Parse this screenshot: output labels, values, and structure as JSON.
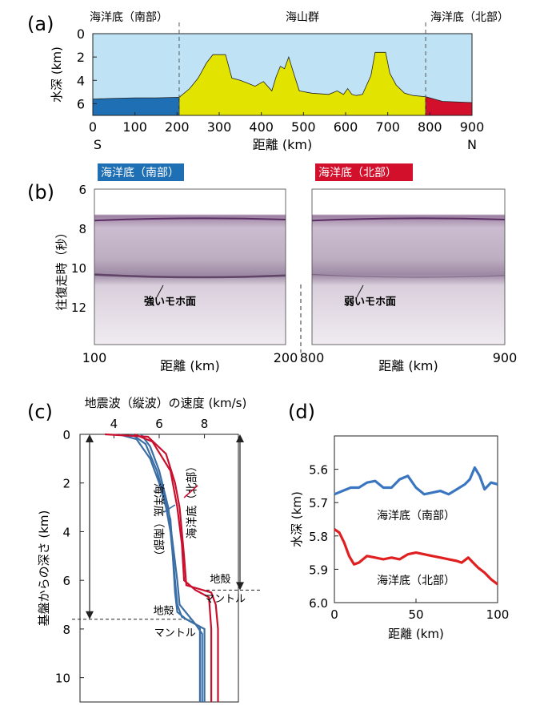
{
  "chart_data": [
    {
      "panel": "(a)",
      "type": "area",
      "xlabel": "距離 (km)",
      "ylabel": "水深 (km)",
      "xlim": [
        0,
        900
      ],
      "ylim": [
        7,
        0
      ],
      "xticks": [
        0,
        100,
        200,
        300,
        400,
        500,
        600,
        700,
        800,
        900
      ],
      "yticks": [
        0,
        2,
        4,
        6
      ],
      "x_end_labels": {
        "left": "S",
        "right": "N"
      },
      "region_labels": [
        "海洋底（南部）",
        "海山群",
        "海洋底（北部）"
      ],
      "boundaries_km": [
        205,
        790
      ],
      "colors": {
        "water": "#bfe3f5",
        "south": "#1f6fb4",
        "seamount": "#e3e300",
        "north": "#d2102b"
      },
      "bathymetry_km": [
        [
          0,
          5.6
        ],
        [
          40,
          5.55
        ],
        [
          100,
          5.5
        ],
        [
          150,
          5.5
        ],
        [
          205,
          5.45
        ],
        [
          230,
          4.7
        ],
        [
          250,
          3.8
        ],
        [
          270,
          2.5
        ],
        [
          285,
          1.8
        ],
        [
          315,
          1.8
        ],
        [
          330,
          3.8
        ],
        [
          350,
          4.0
        ],
        [
          365,
          4.2
        ],
        [
          385,
          4.5
        ],
        [
          405,
          4.1
        ],
        [
          425,
          4.9
        ],
        [
          435,
          3.7
        ],
        [
          445,
          2.8
        ],
        [
          455,
          3.0
        ],
        [
          465,
          2.0
        ],
        [
          475,
          3.2
        ],
        [
          490,
          4.9
        ],
        [
          520,
          5.1
        ],
        [
          560,
          5.2
        ],
        [
          580,
          4.9
        ],
        [
          595,
          5.2
        ],
        [
          605,
          4.7
        ],
        [
          615,
          5.2
        ],
        [
          625,
          5.3
        ],
        [
          640,
          5.2
        ],
        [
          660,
          3.6
        ],
        [
          670,
          1.6
        ],
        [
          695,
          1.6
        ],
        [
          705,
          3.4
        ],
        [
          720,
          4.4
        ],
        [
          740,
          5.1
        ],
        [
          760,
          5.3
        ],
        [
          790,
          5.4
        ],
        [
          830,
          5.8
        ],
        [
          900,
          5.9
        ]
      ]
    },
    {
      "panel": "(b)",
      "type": "image",
      "ylabel": "往復走時（秒）",
      "yticks": [
        6,
        8,
        10,
        12
      ],
      "ylim": [
        6,
        14
      ],
      "xlabel": "距離 (km)",
      "sections": [
        {
          "title": "海洋底（南部）",
          "xlim": [
            100,
            200
          ],
          "annotation": "強いモホ面",
          "title_color": "#1f6fb4"
        },
        {
          "title": "海洋底（北部）",
          "xlim": [
            800,
            900
          ],
          "annotation": "弱いモホ面",
          "title_color": "#d2102b"
        }
      ]
    },
    {
      "panel": "(c)",
      "type": "line",
      "xlabel": "地震波（縦波）の速度 (km/s)",
      "ylabel": "基盤からの深さ (km)",
      "xticks": [
        4,
        6,
        8
      ],
      "xlim": [
        2.5,
        9.5
      ],
      "ylim": [
        11,
        0
      ],
      "yticks": [
        0,
        2,
        4,
        6,
        8,
        10
      ],
      "labels": {
        "crust": "地殻",
        "mantle": "マントル",
        "south": "海洋底（南部）",
        "north": "海洋底（北部）"
      },
      "moho_depth_km": {
        "south": 7.6,
        "north": 6.4
      },
      "series": [
        {
          "group": "south",
          "color": "#3a6ea5",
          "values": [
            [
              4.2,
              0
            ],
            [
              5.0,
              0.2
            ],
            [
              5.6,
              1.0
            ],
            [
              6.0,
              2.0
            ],
            [
              6.3,
              3.0
            ],
            [
              6.5,
              4.0
            ],
            [
              6.6,
              5.0
            ],
            [
              6.7,
              6.0
            ],
            [
              6.8,
              7.0
            ],
            [
              7.0,
              7.5
            ],
            [
              7.8,
              7.9
            ],
            [
              7.8,
              11
            ]
          ]
        },
        {
          "group": "south",
          "color": "#3a6ea5",
          "values": [
            [
              4.8,
              0
            ],
            [
              5.4,
              0.4
            ],
            [
              5.9,
              1.5
            ],
            [
              6.2,
              2.5
            ],
            [
              6.5,
              3.5
            ],
            [
              6.6,
              5.0
            ],
            [
              6.7,
              6.5
            ],
            [
              6.8,
              7.3
            ],
            [
              7.2,
              7.6
            ],
            [
              8.0,
              8.0
            ],
            [
              8.0,
              11
            ]
          ]
        },
        {
          "group": "south",
          "color": "#3a6ea5",
          "values": [
            [
              5.2,
              0
            ],
            [
              5.6,
              0.5
            ],
            [
              6.0,
              1.5
            ],
            [
              6.4,
              3.0
            ],
            [
              6.6,
              4.5
            ],
            [
              6.8,
              6.0
            ],
            [
              6.9,
              7.0
            ],
            [
              7.6,
              7.8
            ],
            [
              7.9,
              8.2
            ],
            [
              7.9,
              11
            ]
          ]
        },
        {
          "group": "north",
          "color": "#c8102e",
          "values": [
            [
              3.6,
              0
            ],
            [
              5.5,
              0.1
            ],
            [
              6.3,
              0.8
            ],
            [
              6.7,
              2.0
            ],
            [
              6.9,
              3.0
            ],
            [
              7.0,
              4.0
            ],
            [
              7.1,
              5.0
            ],
            [
              7.2,
              6.2
            ],
            [
              8.3,
              6.5
            ],
            [
              8.5,
              7.0
            ],
            [
              8.6,
              8.0
            ],
            [
              8.6,
              11
            ]
          ]
        },
        {
          "group": "north",
          "color": "#c8102e",
          "values": [
            [
              4.9,
              0
            ],
            [
              5.7,
              0.3
            ],
            [
              6.5,
              1.5
            ],
            [
              6.8,
              3.0
            ],
            [
              7.0,
              4.5
            ],
            [
              7.1,
              6.0
            ],
            [
              7.6,
              6.4
            ],
            [
              8.2,
              6.7
            ],
            [
              8.3,
              8.0
            ],
            [
              8.3,
              11
            ]
          ]
        }
      ]
    },
    {
      "panel": "(d)",
      "type": "line",
      "xlabel": "距離 (km)",
      "ylabel": "水深 (km)",
      "xlim": [
        0,
        100
      ],
      "ylim": [
        6.0,
        5.5
      ],
      "xticks": [
        0,
        50,
        100
      ],
      "yticks": [
        5.6,
        5.7,
        5.8,
        5.9,
        6.0
      ],
      "series": [
        {
          "name": "海洋底（南部）",
          "color": "#3a76c0",
          "values": [
            [
              0,
              5.675
            ],
            [
              5,
              5.665
            ],
            [
              10,
              5.655
            ],
            [
              15,
              5.655
            ],
            [
              20,
              5.64
            ],
            [
              25,
              5.635
            ],
            [
              30,
              5.655
            ],
            [
              35,
              5.655
            ],
            [
              40,
              5.63
            ],
            [
              45,
              5.62
            ],
            [
              50,
              5.655
            ],
            [
              55,
              5.675
            ],
            [
              60,
              5.67
            ],
            [
              65,
              5.665
            ],
            [
              70,
              5.675
            ],
            [
              75,
              5.66
            ],
            [
              80,
              5.645
            ],
            [
              83,
              5.63
            ],
            [
              86,
              5.595
            ],
            [
              89,
              5.62
            ],
            [
              92,
              5.66
            ],
            [
              96,
              5.64
            ],
            [
              100,
              5.645
            ]
          ]
        },
        {
          "name": "海洋底（北部）",
          "color": "#e02020",
          "values": [
            [
              0,
              5.78
            ],
            [
              3,
              5.79
            ],
            [
              6,
              5.82
            ],
            [
              9,
              5.86
            ],
            [
              12,
              5.885
            ],
            [
              15,
              5.88
            ],
            [
              20,
              5.86
            ],
            [
              25,
              5.865
            ],
            [
              30,
              5.87
            ],
            [
              35,
              5.865
            ],
            [
              40,
              5.87
            ],
            [
              45,
              5.855
            ],
            [
              50,
              5.85
            ],
            [
              55,
              5.855
            ],
            [
              60,
              5.86
            ],
            [
              65,
              5.865
            ],
            [
              70,
              5.87
            ],
            [
              75,
              5.875
            ],
            [
              78,
              5.88
            ],
            [
              82,
              5.865
            ],
            [
              85,
              5.88
            ],
            [
              88,
              5.895
            ],
            [
              92,
              5.91
            ],
            [
              96,
              5.93
            ],
            [
              100,
              5.945
            ]
          ]
        }
      ]
    }
  ]
}
